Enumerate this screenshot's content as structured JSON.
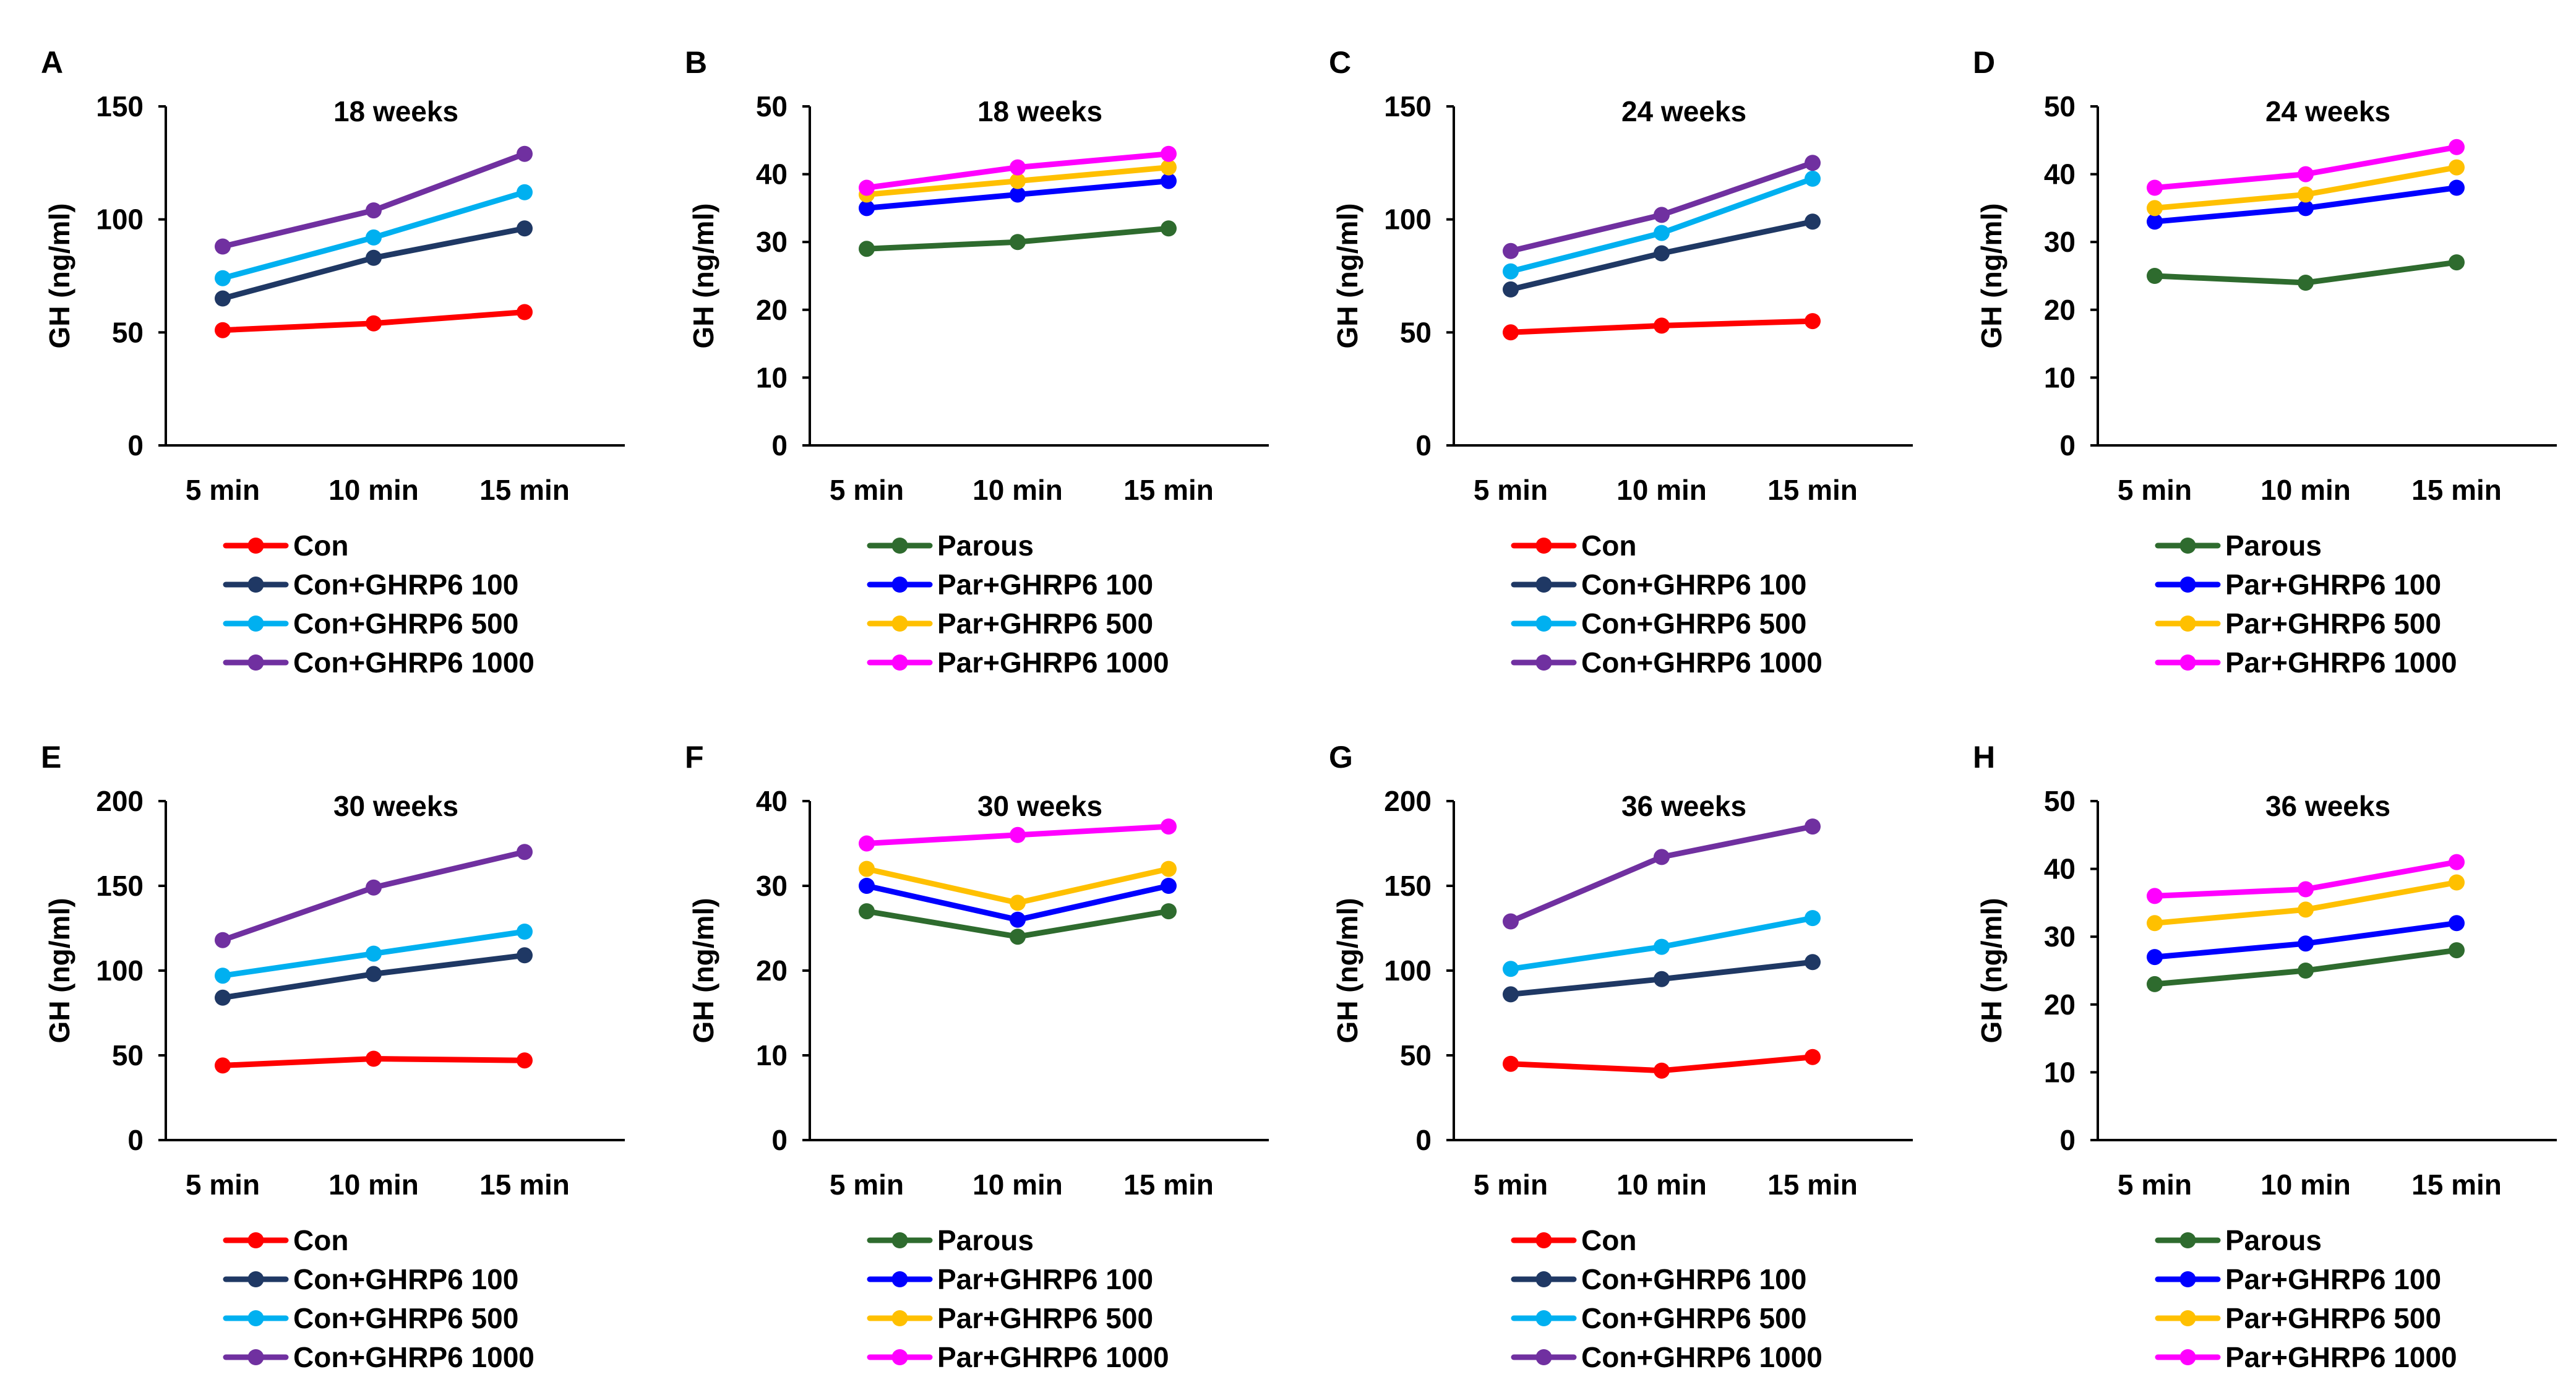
{
  "chart_data": [
    {
      "type": "line",
      "panel": "A",
      "title": "18 weeks",
      "ylabel": "GH  (ng/ml)",
      "xlabel": "",
      "ylim": [
        0,
        150
      ],
      "yticks": [
        0,
        50,
        100,
        150
      ],
      "categories": [
        "5 min",
        "10 min",
        "15 min"
      ],
      "series": [
        {
          "name": "Con",
          "color": "#ff0000",
          "values": [
            51,
            54,
            59
          ]
        },
        {
          "name": "Con+GHRP6 100",
          "color": "#1f3864",
          "values": [
            65,
            83,
            96
          ]
        },
        {
          "name": "Con+GHRP6 500",
          "color": "#00b0f0",
          "values": [
            74,
            92,
            112
          ]
        },
        {
          "name": "Con+GHRP6 1000",
          "color": "#7030a0",
          "values": [
            88,
            104,
            129
          ]
        }
      ]
    },
    {
      "type": "line",
      "panel": "B",
      "title": "18 weeks",
      "ylabel": "GH  (ng/ml)",
      "xlabel": "",
      "ylim": [
        0,
        50
      ],
      "yticks": [
        0,
        10,
        20,
        30,
        40,
        50
      ],
      "categories": [
        "5 min",
        "10 min",
        "15 min"
      ],
      "series": [
        {
          "name": "Parous",
          "color": "#2e6b2e",
          "values": [
            29,
            30,
            32
          ]
        },
        {
          "name": "Par+GHRP6 100",
          "color": "#0000ff",
          "values": [
            35,
            37,
            39
          ]
        },
        {
          "name": "Par+GHRP6 500",
          "color": "#ffc000",
          "values": [
            37,
            39,
            41
          ]
        },
        {
          "name": "Par+GHRP6 1000",
          "color": "#ff00ff",
          "values": [
            38,
            41,
            43
          ]
        }
      ]
    },
    {
      "type": "line",
      "panel": "C",
      "title": "24 weeks",
      "ylabel": "GH  (ng/ml)",
      "xlabel": "",
      "ylim": [
        0,
        150
      ],
      "yticks": [
        0,
        50,
        100,
        150
      ],
      "categories": [
        "5 min",
        "10 min",
        "15 min"
      ],
      "series": [
        {
          "name": "Con",
          "color": "#ff0000",
          "values": [
            50,
            53,
            55
          ]
        },
        {
          "name": "Con+GHRP6 100",
          "color": "#1f3864",
          "values": [
            69,
            85,
            99
          ]
        },
        {
          "name": "Con+GHRP6 500",
          "color": "#00b0f0",
          "values": [
            77,
            94,
            118
          ]
        },
        {
          "name": "Con+GHRP6 1000",
          "color": "#7030a0",
          "values": [
            86,
            102,
            125
          ]
        }
      ]
    },
    {
      "type": "line",
      "panel": "D",
      "title": "24 weeks",
      "ylabel": "GH  (ng/ml)",
      "xlabel": "",
      "ylim": [
        0,
        50
      ],
      "yticks": [
        0,
        10,
        20,
        30,
        40,
        50
      ],
      "categories": [
        "5 min",
        "10 min",
        "15 min"
      ],
      "series": [
        {
          "name": "Parous",
          "color": "#2e6b2e",
          "values": [
            25,
            24,
            27
          ]
        },
        {
          "name": "Par+GHRP6 100",
          "color": "#0000ff",
          "values": [
            33,
            35,
            38
          ]
        },
        {
          "name": "Par+GHRP6 500",
          "color": "#ffc000",
          "values": [
            35,
            37,
            41
          ]
        },
        {
          "name": "Par+GHRP6 1000",
          "color": "#ff00ff",
          "values": [
            38,
            40,
            44
          ]
        }
      ]
    },
    {
      "type": "line",
      "panel": "E",
      "title": "30 weeks",
      "ylabel": "GH  (ng/ml)",
      "xlabel": "",
      "ylim": [
        0,
        200
      ],
      "yticks": [
        0,
        50,
        100,
        150,
        200
      ],
      "categories": [
        "5 min",
        "10 min",
        "15 min"
      ],
      "series": [
        {
          "name": "Con",
          "color": "#ff0000",
          "values": [
            44,
            48,
            47
          ]
        },
        {
          "name": "Con+GHRP6 100",
          "color": "#1f3864",
          "values": [
            84,
            98,
            109
          ]
        },
        {
          "name": "Con+GHRP6 500",
          "color": "#00b0f0",
          "values": [
            97,
            110,
            123
          ]
        },
        {
          "name": "Con+GHRP6 1000",
          "color": "#7030a0",
          "values": [
            118,
            149,
            170
          ]
        }
      ]
    },
    {
      "type": "line",
      "panel": "F",
      "title": "30 weeks",
      "ylabel": "GH  (ng/ml)",
      "xlabel": "",
      "ylim": [
        0,
        40
      ],
      "yticks": [
        0,
        10,
        20,
        30,
        40
      ],
      "categories": [
        "5 min",
        "10 min",
        "15 min"
      ],
      "series": [
        {
          "name": "Parous",
          "color": "#2e6b2e",
          "values": [
            27,
            24,
            27
          ]
        },
        {
          "name": "Par+GHRP6 100",
          "color": "#0000ff",
          "values": [
            30,
            26,
            30
          ]
        },
        {
          "name": "Par+GHRP6 500",
          "color": "#ffc000",
          "values": [
            32,
            28,
            32
          ]
        },
        {
          "name": "Par+GHRP6 1000",
          "color": "#ff00ff",
          "values": [
            35,
            36,
            37
          ]
        }
      ]
    },
    {
      "type": "line",
      "panel": "G",
      "title": "36 weeks",
      "ylabel": "GH  (ng/ml)",
      "xlabel": "",
      "ylim": [
        0,
        200
      ],
      "yticks": [
        0,
        50,
        100,
        150,
        200
      ],
      "categories": [
        "5 min",
        "10 min",
        "15 min"
      ],
      "series": [
        {
          "name": "Con",
          "color": "#ff0000",
          "values": [
            45,
            41,
            49
          ]
        },
        {
          "name": "Con+GHRP6 100",
          "color": "#1f3864",
          "values": [
            86,
            95,
            105
          ]
        },
        {
          "name": "Con+GHRP6 500",
          "color": "#00b0f0",
          "values": [
            101,
            114,
            131
          ]
        },
        {
          "name": "Con+GHRP6 1000",
          "color": "#7030a0",
          "values": [
            129,
            167,
            185
          ]
        }
      ]
    },
    {
      "type": "line",
      "panel": "H",
      "title": "36 weeks",
      "ylabel": "GH  (ng/ml)",
      "xlabel": "",
      "ylim": [
        0,
        50
      ],
      "yticks": [
        0,
        10,
        20,
        30,
        40,
        50
      ],
      "categories": [
        "5 min",
        "10 min",
        "15 min"
      ],
      "series": [
        {
          "name": "Parous",
          "color": "#2e6b2e",
          "values": [
            23,
            25,
            28
          ]
        },
        {
          "name": "Par+GHRP6 100",
          "color": "#0000ff",
          "values": [
            27,
            29,
            32
          ]
        },
        {
          "name": "Par+GHRP6 500",
          "color": "#ffc000",
          "values": [
            32,
            34,
            38
          ]
        },
        {
          "name": "Par+GHRP6 1000",
          "color": "#ff00ff",
          "values": [
            36,
            37,
            41
          ]
        }
      ]
    }
  ]
}
